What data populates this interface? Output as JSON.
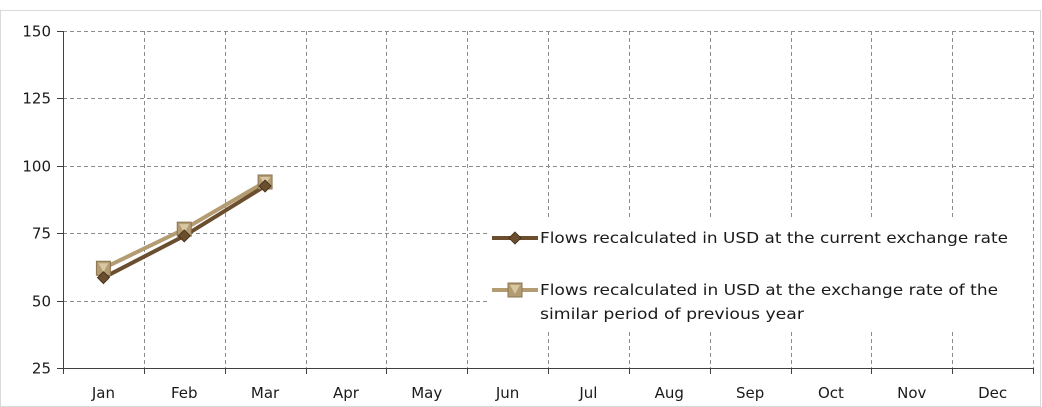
{
  "chart_data": {
    "type": "line",
    "categories": [
      "Jan",
      "Feb",
      "Mar",
      "Apr",
      "May",
      "Jun",
      "Jul",
      "Aug",
      "Sep",
      "Oct",
      "Nov",
      "Dec"
    ],
    "series": [
      {
        "name": "Flows recalculated in USD at the current exchange rate",
        "values": [
          58.5,
          74,
          92.5,
          null,
          null,
          null,
          null,
          null,
          null,
          null,
          null,
          null
        ],
        "color": "#6b4e2e",
        "marker": "diamond"
      },
      {
        "name": "Flows recalculated in USD at the exchange rate of the similar period of previous year",
        "values": [
          62,
          76.5,
          94,
          null,
          null,
          null,
          null,
          null,
          null,
          null,
          null,
          null
        ],
        "color": "#b39b72",
        "marker": "square"
      }
    ],
    "ylim": [
      25,
      150
    ],
    "yticks": [
      25,
      50,
      75,
      100,
      125,
      150
    ],
    "grid": true,
    "legend_position": "right",
    "xlabel": "",
    "ylabel": "",
    "title": ""
  }
}
